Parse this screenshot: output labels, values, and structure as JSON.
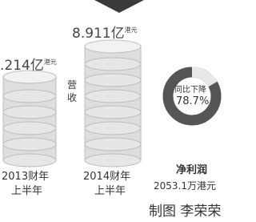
{
  "left_bar": {
    "amount": ".214亿",
    "currency": "港元",
    "period": [
      "2013财年",
      "上半年"
    ]
  },
  "right_bar": {
    "amount": "8.911亿",
    "currency": "港元",
    "period": [
      "2014财年",
      "上半年"
    ]
  },
  "revenue_label": [
    "营",
    "收"
  ],
  "donut": {
    "caption": "同比下降",
    "value": "78.7%"
  },
  "profit": {
    "label": "净利润",
    "amount": "2053.1万港元"
  },
  "credit": "制图 李荣荣"
}
